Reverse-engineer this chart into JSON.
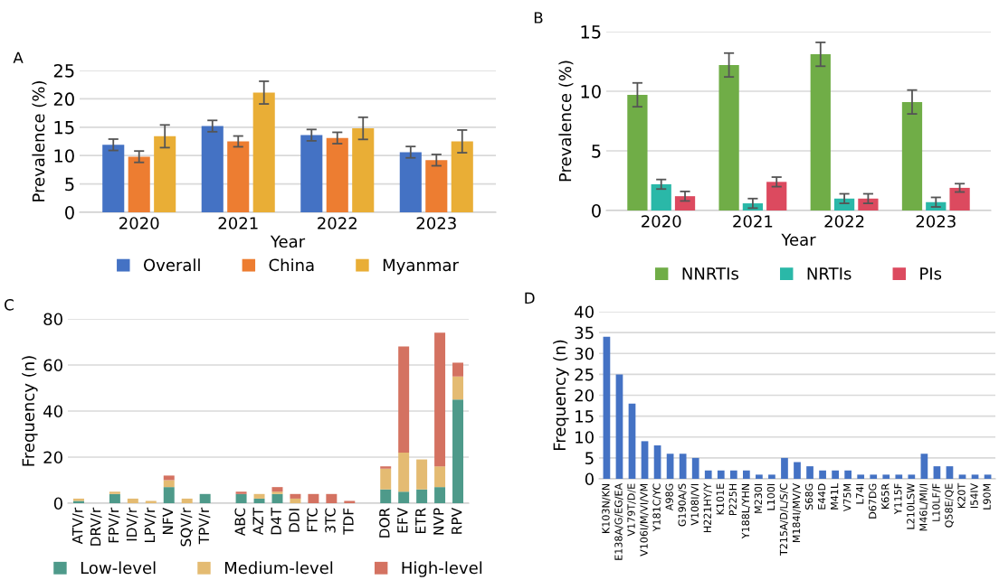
{
  "chart_data": [
    {
      "type": "bar",
      "title": "A",
      "xlabel": "Year",
      "ylabel": "Prevalence (%)",
      "categories": [
        "2020",
        "2021",
        "2022",
        "2023"
      ],
      "series": [
        {
          "name": "Overall",
          "color": "#4472c4",
          "values": [
            11.9,
            15.2,
            13.6,
            10.6
          ],
          "errors": [
            1.0,
            1.0,
            1.0,
            1.0
          ]
        },
        {
          "name": "China",
          "color": "#ed7d31",
          "values": [
            9.8,
            12.5,
            13.1,
            9.2
          ],
          "errors": [
            1.0,
            0.95,
            1.0,
            1.0
          ]
        },
        {
          "name": "Myanmar",
          "color": "#e9ae36",
          "values": [
            13.4,
            21.1,
            14.8,
            12.5
          ],
          "errors": [
            2.0,
            2.0,
            1.95,
            2.0
          ]
        }
      ],
      "ylim": [
        0,
        25
      ],
      "yticks": [
        0,
        5,
        10,
        15,
        20,
        25
      ],
      "grid": "y",
      "legend": "bottom"
    },
    {
      "type": "bar",
      "title": "B",
      "xlabel": "Year",
      "ylabel": "Prevalence (%)",
      "categories": [
        "2020",
        "2021",
        "2022",
        "2023"
      ],
      "series": [
        {
          "name": "NNRTIs",
          "color": "#70ad47",
          "values": [
            9.7,
            12.2,
            13.1,
            9.1
          ],
          "errors": [
            1.0,
            1.0,
            1.0,
            1.0
          ]
        },
        {
          "name": "NRTIs",
          "color": "#2ab8a8",
          "values": [
            2.2,
            0.6,
            1.0,
            0.7
          ],
          "errors": [
            0.4,
            0.4,
            0.4,
            0.4
          ]
        },
        {
          "name": "PIs",
          "color": "#dc4a5f",
          "values": [
            1.2,
            2.4,
            1.0,
            1.9
          ],
          "errors": [
            0.4,
            0.4,
            0.4,
            0.35
          ]
        }
      ],
      "ylim": [
        0,
        15
      ],
      "yticks": [
        0,
        5,
        10,
        15
      ],
      "grid": "y",
      "legend": "bottom"
    },
    {
      "type": "bar",
      "title": "C",
      "ylabel": "Frequency (n)",
      "stacked": true,
      "categories": [
        "ATV/r",
        "DRV/r",
        "FPV/r",
        "IDV/r",
        "LPV/r",
        "NFV",
        "SQV/r",
        "TPV/r",
        null,
        "ABC",
        "AZT",
        "D4T",
        "DDI",
        "FTC",
        "3TC",
        "TDF",
        null,
        "DOR",
        "EFV",
        "ETR",
        "NVP",
        "RPV"
      ],
      "series": [
        {
          "name": "Low-level",
          "color": "#4e9a8a",
          "values": [
            1,
            0,
            4,
            0,
            0,
            7,
            0,
            4,
            null,
            4,
            2,
            4,
            0,
            0,
            0,
            0,
            null,
            6,
            5,
            6,
            7,
            45
          ]
        },
        {
          "name": "Medium-level",
          "color": "#e4bb72",
          "values": [
            1,
            0,
            1,
            2,
            1,
            3,
            2,
            0,
            null,
            0,
            2,
            1,
            2,
            0,
            0,
            0,
            null,
            9,
            17,
            13,
            9,
            10
          ]
        },
        {
          "name": "High-level",
          "color": "#d47261",
          "values": [
            0,
            0,
            0,
            0,
            0,
            2,
            0,
            0,
            null,
            1,
            0,
            2,
            2,
            4,
            4,
            1,
            null,
            1,
            46,
            0,
            58,
            6
          ]
        }
      ],
      "ylim": [
        0,
        80
      ],
      "yticks": [
        0,
        20,
        40,
        60,
        80
      ],
      "grid": "y",
      "legend": "bottom"
    },
    {
      "type": "bar",
      "title": "D",
      "ylabel": "Frequency (n)",
      "categories": [
        "K103N/KN",
        "E138A/G/EG/EA",
        "V179T/D/E",
        "V106I/M/VI/VM",
        "Y181C/YC",
        "A98G",
        "G190A/S",
        "V108I/VI",
        "H221HY/Y",
        "K101E",
        "P225H",
        "Y188L/YHN",
        "M230I",
        "L100I",
        "T215A/D/L/S/C",
        "M184I/MV/V",
        "S68G",
        "E44D",
        "M41L",
        "V75M",
        "L74I",
        "D67DG",
        "K65R",
        "Y115F",
        "L210LSW",
        "M46L/MI/I",
        "L10LF/F",
        "Q58E/QE",
        "K20T",
        "I54IV",
        "L90M"
      ],
      "series": [
        {
          "color": "#4472c4",
          "values": [
            34,
            25,
            18,
            9,
            8,
            6,
            6,
            5,
            2,
            2,
            2,
            2,
            1,
            1,
            5,
            4,
            3,
            2,
            2,
            2,
            1,
            1,
            1,
            1,
            1,
            6,
            3,
            3,
            1,
            1,
            1
          ]
        }
      ],
      "ylim": [
        0,
        40
      ],
      "yticks": [
        0,
        5,
        10,
        15,
        20,
        25,
        30,
        35,
        40
      ],
      "grid": "y"
    }
  ]
}
